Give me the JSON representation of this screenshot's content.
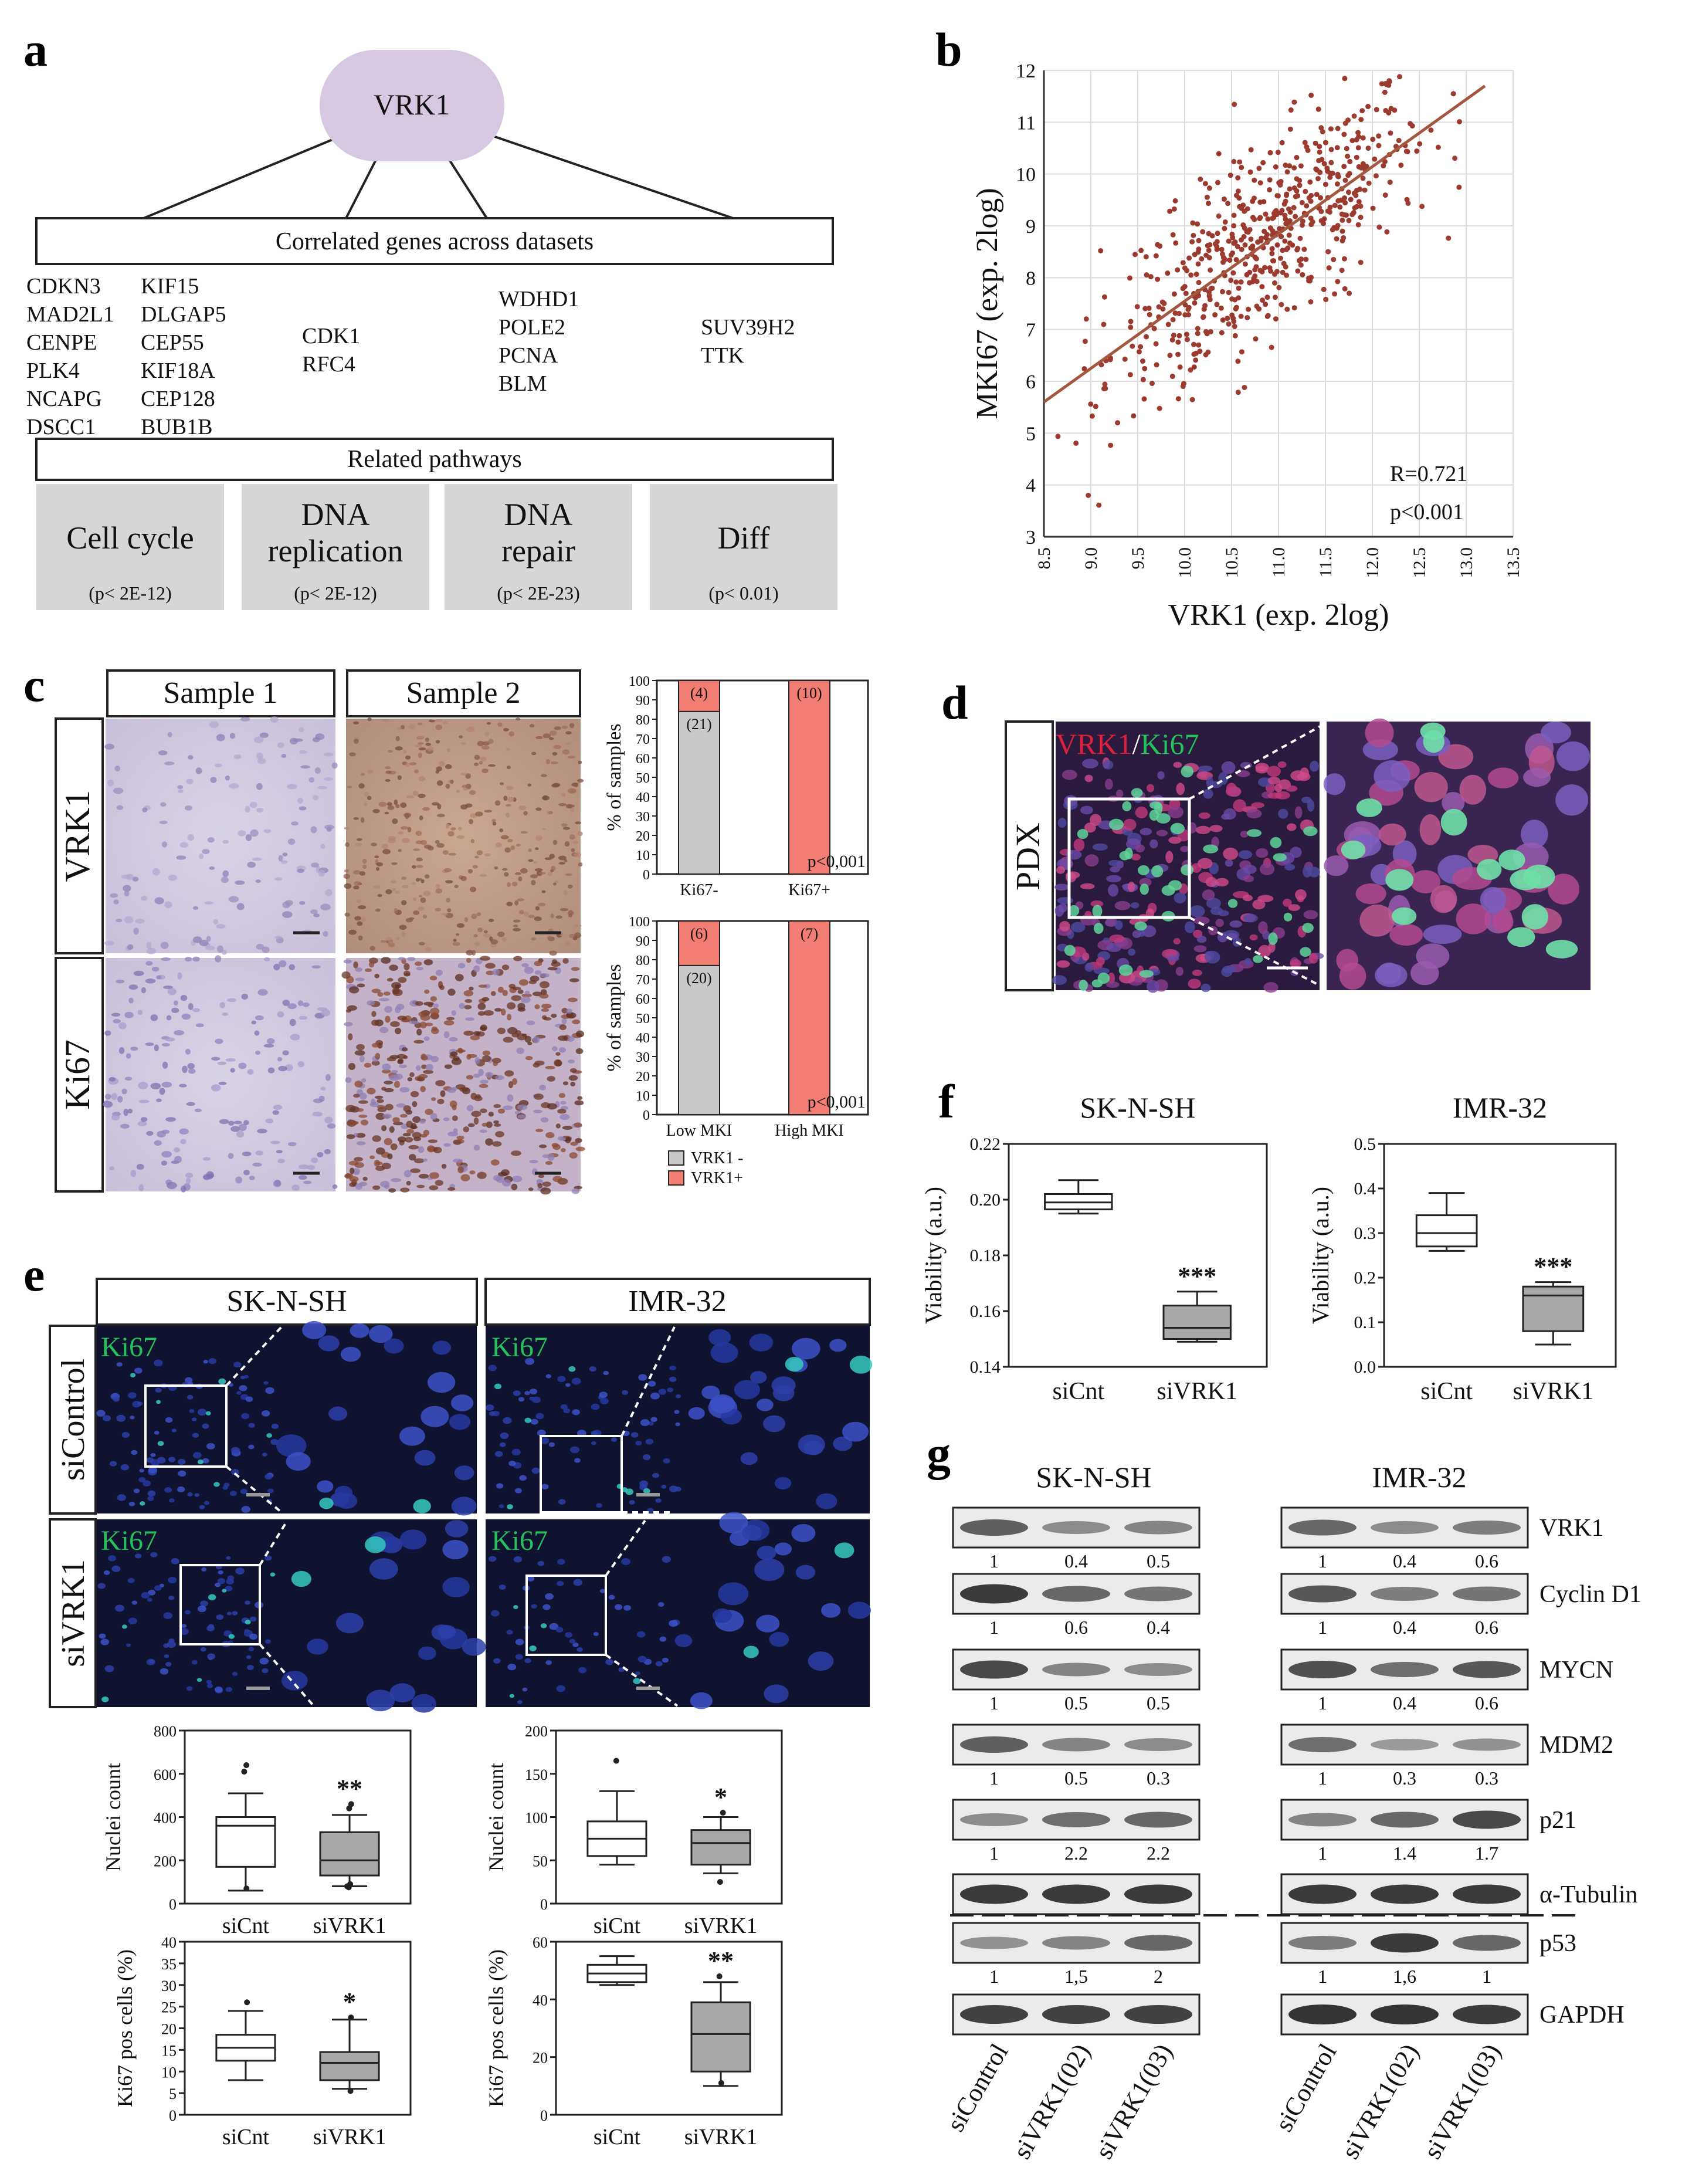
{
  "panels": {
    "a": "a",
    "b": "b",
    "c": "c",
    "d": "d",
    "e": "e",
    "f": "f",
    "g": "g"
  },
  "panel_a": {
    "hub": "VRK1",
    "correlated_title": "Correlated genes across datasets",
    "gene_groups": [
      [
        "CDKN3",
        "MAD2L1",
        "CENPE",
        "PLK4",
        "NCAPG",
        "DSCC1"
      ],
      [
        "KIF15",
        "DLGAP5",
        "CEP55",
        "KIF18A",
        "CEP128",
        "BUB1B"
      ],
      [
        "CDK1",
        "RFC4"
      ],
      [
        "WDHD1",
        "POLE2",
        "PCNA",
        "BLM"
      ],
      [
        "SUV39H2",
        "TTK"
      ]
    ],
    "pathways_title": "Related pathways",
    "pathways": [
      {
        "name_lines": [
          "Cell cycle"
        ],
        "p": "(p< 2E-12)"
      },
      {
        "name_lines": [
          "DNA",
          "replication"
        ],
        "p": "(p< 2E-12)"
      },
      {
        "name_lines": [
          "DNA",
          "repair"
        ],
        "p": "(p< 2E-23)"
      },
      {
        "name_lines": [
          "Diff"
        ],
        "p": "(p< 0.01)"
      }
    ]
  },
  "chart_data": [
    {
      "id": "b-scatter",
      "type": "scatter",
      "xlabel": "VRK1 (exp. 2log)",
      "ylabel": "MKI67 (exp. 2log)",
      "xlim": [
        8.5,
        13.5
      ],
      "ylim": [
        3,
        12
      ],
      "xticks": [
        "8.5",
        "9.0",
        "9.5",
        "10.0",
        "10.5",
        "11.0",
        "11.5",
        "12.0",
        "12.5",
        "13.0",
        "13.5"
      ],
      "yticks": [
        "3",
        "4",
        "5",
        "6",
        "7",
        "8",
        "9",
        "10",
        "11",
        "12"
      ],
      "grid": true,
      "point_color": "#9b3a2e",
      "trend_line": {
        "x": [
          8.5,
          13.2
        ],
        "y": [
          5.6,
          11.7
        ]
      },
      "annotations": [
        "R=0.721",
        "p<0.001"
      ],
      "approx_n_points": 600
    },
    {
      "id": "c-vrk1-ki67",
      "type": "bar",
      "stacked": true,
      "ylabel": "% of samples",
      "ylim": [
        0,
        100
      ],
      "yticks": [
        "0",
        "10",
        "20",
        "30",
        "40",
        "50",
        "60",
        "70",
        "80",
        "90",
        "100"
      ],
      "categories": [
        "Ki67-",
        "Ki67+"
      ],
      "series": [
        {
          "name": "VRK1 -",
          "values": [
            84,
            0
          ],
          "counts": [
            "(21)",
            ""
          ],
          "color": "#c8c8c8"
        },
        {
          "name": "VRK1+",
          "values": [
            16,
            100
          ],
          "counts": [
            "(4)",
            "(10)"
          ],
          "color": "#f27d72"
        }
      ],
      "annotation": "p<0,001"
    },
    {
      "id": "c-vrk1-mki",
      "type": "bar",
      "stacked": true,
      "ylabel": "% of samples",
      "ylim": [
        0,
        100
      ],
      "yticks": [
        "0",
        "10",
        "20",
        "30",
        "40",
        "50",
        "60",
        "70",
        "80",
        "90",
        "100"
      ],
      "categories": [
        "Low MKI",
        "High MKI"
      ],
      "series": [
        {
          "name": "VRK1 -",
          "values": [
            77,
            0
          ],
          "counts": [
            "(20)",
            ""
          ],
          "color": "#c8c8c8"
        },
        {
          "name": "VRK1+",
          "values": [
            23,
            100
          ],
          "counts": [
            "(6)",
            "(7)"
          ],
          "color": "#f27d72"
        }
      ],
      "annotation": "p<0,001",
      "legend": [
        "VRK1 -",
        "VRK1+"
      ]
    },
    {
      "id": "e-nuclei-sknsh",
      "type": "box",
      "ylabel": "Nuclei count",
      "ylim": [
        0,
        800
      ],
      "yticks": [
        "0",
        "200",
        "400",
        "600",
        "800"
      ],
      "categories": [
        "siCnt",
        "siVRK1"
      ],
      "boxes": [
        {
          "min": 60,
          "q1": 170,
          "median": 360,
          "q3": 400,
          "max": 510,
          "outliers": [
            640,
            610,
            70
          ]
        },
        {
          "min": 80,
          "q1": 130,
          "median": 200,
          "q3": 330,
          "max": 410,
          "outliers": [
            460,
            440,
            90,
            80,
            75
          ]
        }
      ],
      "significance": "**"
    },
    {
      "id": "e-nuclei-imr32",
      "type": "box",
      "ylabel": "Nuclei count",
      "ylim": [
        0,
        200
      ],
      "yticks": [
        "0",
        "50",
        "100",
        "150",
        "200"
      ],
      "categories": [
        "siCnt",
        "siVRK1"
      ],
      "boxes": [
        {
          "min": 45,
          "q1": 55,
          "median": 75,
          "q3": 95,
          "max": 130,
          "outliers": [
            165
          ]
        },
        {
          "min": 35,
          "q1": 45,
          "median": 70,
          "q3": 85,
          "max": 100,
          "outliers": [
            105,
            25
          ]
        }
      ],
      "significance": "*"
    },
    {
      "id": "e-ki67-sknsh",
      "type": "box",
      "ylabel": "Ki67 pos cells (%)",
      "ylim": [
        0,
        40
      ],
      "yticks": [
        "0",
        "5",
        "10",
        "15",
        "20",
        "25",
        "30",
        "35",
        "40"
      ],
      "categories": [
        "siCnt",
        "siVRK1"
      ],
      "boxes": [
        {
          "min": 8,
          "q1": 12.5,
          "median": 15.5,
          "q3": 18.5,
          "max": 24,
          "outliers": [
            26
          ]
        },
        {
          "min": 6,
          "q1": 8,
          "median": 12,
          "q3": 14.5,
          "max": 22,
          "outliers": [
            22.5,
            5.5
          ]
        }
      ],
      "significance": "*"
    },
    {
      "id": "e-ki67-imr32",
      "type": "box",
      "ylabel": "Ki67 pos cells (%)",
      "ylim": [
        0,
        60
      ],
      "yticks": [
        "0",
        "20",
        "40",
        "60"
      ],
      "categories": [
        "siCnt",
        "siVRK1"
      ],
      "boxes": [
        {
          "min": 45,
          "q1": 46,
          "median": 49,
          "q3": 52,
          "max": 55,
          "outliers": []
        },
        {
          "min": 10,
          "q1": 15,
          "median": 28,
          "q3": 39,
          "max": 46,
          "outliers": [
            48,
            11
          ]
        }
      ],
      "significance": "**"
    },
    {
      "id": "f-sknsh",
      "type": "box",
      "title": "SK-N-SH",
      "ylabel": "Viability (a.u.)",
      "ylim": [
        0.14,
        0.22
      ],
      "yticks": [
        "0.14",
        "0.16",
        "0.18",
        "0.20",
        "0.22"
      ],
      "categories": [
        "siCnt",
        "siVRK1"
      ],
      "boxes": [
        {
          "min": 0.195,
          "q1": 0.1965,
          "median": 0.199,
          "q3": 0.202,
          "max": 0.207,
          "outliers": []
        },
        {
          "min": 0.149,
          "q1": 0.15,
          "median": 0.154,
          "q3": 0.162,
          "max": 0.167,
          "outliers": []
        }
      ],
      "significance": "***"
    },
    {
      "id": "f-imr32",
      "type": "box",
      "title": "IMR-32",
      "ylabel": "Viability (a.u.)",
      "ylim": [
        0,
        0.5
      ],
      "yticks": [
        "0.0",
        "0.1",
        "0.2",
        "0.3",
        "0.4",
        "0.5"
      ],
      "categories": [
        "siCnt",
        "siVRK1"
      ],
      "boxes": [
        {
          "min": 0.26,
          "q1": 0.27,
          "median": 0.3,
          "q3": 0.34,
          "max": 0.39,
          "outliers": []
        },
        {
          "min": 0.05,
          "q1": 0.08,
          "median": 0.16,
          "q3": 0.18,
          "max": 0.19,
          "outliers": []
        }
      ],
      "significance": "***"
    }
  ],
  "panel_c": {
    "col_labels": [
      "Sample 1",
      "Sample 2"
    ],
    "row_labels": [
      "VRK1",
      "Ki67"
    ]
  },
  "panel_d": {
    "row_label": "PDX",
    "stain_red": "VRK1",
    "stain_sep": "/",
    "stain_green": "Ki67"
  },
  "panel_e": {
    "col_labels": [
      "SK-N-SH",
      "IMR-32"
    ],
    "row_labels": [
      "siControl",
      "siVRK1"
    ],
    "stain": "Ki67"
  },
  "panel_g": {
    "cell_lines": [
      "SK-N-SH",
      "IMR-32"
    ],
    "proteins": [
      "VRK1",
      "Cyclin D1",
      "MYCN",
      "MDM2",
      "p21",
      "α-Tubulin",
      "p53",
      "GAPDH"
    ],
    "quant_sknsh": [
      [
        "1",
        "0.4",
        "0.5"
      ],
      [
        "1",
        "0.6",
        "0.4"
      ],
      [
        "1",
        "0.5",
        "0.5"
      ],
      [
        "1",
        "0.5",
        "0.3"
      ],
      [
        "1",
        "2.2",
        "2.2"
      ],
      null,
      [
        "1",
        "1,5",
        "2"
      ],
      null
    ],
    "quant_imr32": [
      [
        "1",
        "0.4",
        "0.6"
      ],
      [
        "1",
        "0.4",
        "0.6"
      ],
      [
        "1",
        "0.4",
        "0.6"
      ],
      [
        "1",
        "0.3",
        "0.3"
      ],
      [
        "1",
        "1.4",
        "1.7"
      ],
      null,
      [
        "1",
        "1,6",
        "1"
      ],
      null
    ],
    "lanes": [
      "siControl",
      "siVRK1(02)",
      "siVRK1(03)"
    ]
  }
}
